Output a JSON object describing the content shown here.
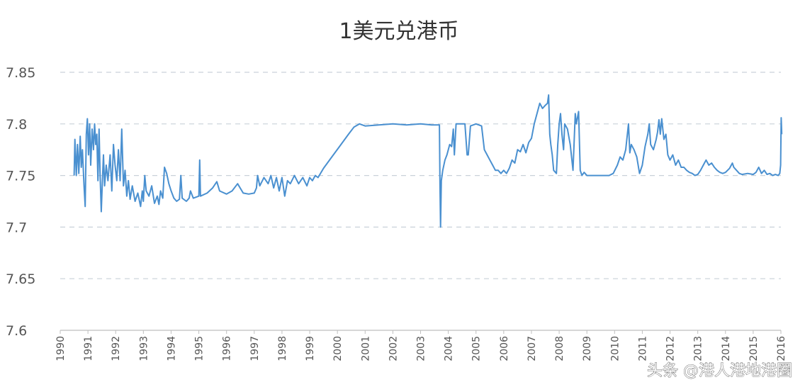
{
  "chart_data": {
    "type": "line",
    "title": "1美元兑港币",
    "xlabel": "",
    "ylabel": "",
    "ylim": [
      7.6,
      7.85
    ],
    "yticks": [
      "7.85",
      "7.8",
      "7.75",
      "7.7",
      "7.65",
      "7.6"
    ],
    "ytick_values": [
      7.85,
      7.8,
      7.75,
      7.7,
      7.65,
      7.6
    ],
    "xlim": [
      1990,
      2016
    ],
    "xticks": [
      "1990",
      "1991",
      "1992",
      "1993",
      "1994",
      "1995",
      "1996",
      "1997",
      "1998",
      "1999",
      "2000",
      "2001",
      "2002",
      "2003",
      "2004",
      "2005",
      "2006",
      "2007",
      "2008",
      "2009",
      "2010",
      "2011",
      "2012",
      "2013",
      "2014",
      "2015",
      "2016"
    ],
    "grid": true,
    "colors": {
      "series": "#4a90d0",
      "grid": "#c9d1d9",
      "text": "#555555"
    },
    "series": [
      {
        "values": [
          [
            1990.5,
            7.75
          ],
          [
            1990.53,
            7.785
          ],
          [
            1990.58,
            7.75
          ],
          [
            1990.62,
            7.78
          ],
          [
            1990.67,
            7.752
          ],
          [
            1990.72,
            7.788
          ],
          [
            1990.76,
            7.758
          ],
          [
            1990.8,
            7.775
          ],
          [
            1990.86,
            7.74
          ],
          [
            1990.9,
            7.72
          ],
          [
            1990.94,
            7.79
          ],
          [
            1990.98,
            7.805
          ],
          [
            1991.02,
            7.77
          ],
          [
            1991.06,
            7.8
          ],
          [
            1991.1,
            7.76
          ],
          [
            1991.15,
            7.795
          ],
          [
            1991.2,
            7.775
          ],
          [
            1991.24,
            7.8
          ],
          [
            1991.28,
            7.78
          ],
          [
            1991.32,
            7.79
          ],
          [
            1991.36,
            7.745
          ],
          [
            1991.4,
            7.795
          ],
          [
            1991.44,
            7.75
          ],
          [
            1991.48,
            7.715
          ],
          [
            1991.52,
            7.745
          ],
          [
            1991.56,
            7.77
          ],
          [
            1991.6,
            7.74
          ],
          [
            1991.66,
            7.76
          ],
          [
            1991.72,
            7.745
          ],
          [
            1991.8,
            7.77
          ],
          [
            1991.86,
            7.735
          ],
          [
            1991.92,
            7.78
          ],
          [
            1991.98,
            7.76
          ],
          [
            1992.04,
            7.745
          ],
          [
            1992.1,
            7.775
          ],
          [
            1992.16,
            7.745
          ],
          [
            1992.22,
            7.795
          ],
          [
            1992.28,
            7.74
          ],
          [
            1992.34,
            7.755
          ],
          [
            1992.4,
            7.73
          ],
          [
            1992.46,
            7.745
          ],
          [
            1992.52,
            7.727
          ],
          [
            1992.6,
            7.74
          ],
          [
            1992.7,
            7.725
          ],
          [
            1992.8,
            7.733
          ],
          [
            1992.9,
            7.72
          ],
          [
            1992.96,
            7.735
          ],
          [
            1993.0,
            7.725
          ],
          [
            1993.05,
            7.75
          ],
          [
            1993.1,
            7.735
          ],
          [
            1993.2,
            7.73
          ],
          [
            1993.3,
            7.74
          ],
          [
            1993.4,
            7.723
          ],
          [
            1993.5,
            7.73
          ],
          [
            1993.56,
            7.722
          ],
          [
            1993.62,
            7.735
          ],
          [
            1993.7,
            7.728
          ],
          [
            1993.76,
            7.758
          ],
          [
            1993.84,
            7.752
          ],
          [
            1993.92,
            7.742
          ],
          [
            1994.0,
            7.735
          ],
          [
            1994.1,
            7.728
          ],
          [
            1994.2,
            7.725
          ],
          [
            1994.3,
            7.727
          ],
          [
            1994.35,
            7.75
          ],
          [
            1994.4,
            7.728
          ],
          [
            1994.55,
            7.725
          ],
          [
            1994.65,
            7.728
          ],
          [
            1994.7,
            7.735
          ],
          [
            1994.8,
            7.728
          ],
          [
            1995.0,
            7.73
          ],
          [
            1995.03,
            7.765
          ],
          [
            1995.06,
            7.73
          ],
          [
            1995.3,
            7.733
          ],
          [
            1995.5,
            7.738
          ],
          [
            1995.65,
            7.744
          ],
          [
            1995.75,
            7.735
          ],
          [
            1996.0,
            7.732
          ],
          [
            1996.2,
            7.735
          ],
          [
            1996.4,
            7.742
          ],
          [
            1996.6,
            7.733
          ],
          [
            1996.8,
            7.732
          ],
          [
            1997.0,
            7.733
          ],
          [
            1997.08,
            7.738
          ],
          [
            1997.12,
            7.75
          ],
          [
            1997.2,
            7.74
          ],
          [
            1997.35,
            7.748
          ],
          [
            1997.5,
            7.742
          ],
          [
            1997.6,
            7.75
          ],
          [
            1997.7,
            7.738
          ],
          [
            1997.8,
            7.748
          ],
          [
            1997.9,
            7.735
          ],
          [
            1998.0,
            7.748
          ],
          [
            1998.1,
            7.73
          ],
          [
            1998.2,
            7.745
          ],
          [
            1998.3,
            7.742
          ],
          [
            1998.45,
            7.75
          ],
          [
            1998.6,
            7.742
          ],
          [
            1998.75,
            7.748
          ],
          [
            1998.9,
            7.74
          ],
          [
            1999.0,
            7.748
          ],
          [
            1999.1,
            7.745
          ],
          [
            1999.2,
            7.75
          ],
          [
            1999.3,
            7.748
          ],
          [
            1999.5,
            7.757
          ],
          [
            1999.8,
            7.768
          ],
          [
            2000.1,
            7.779
          ],
          [
            2000.4,
            7.79
          ],
          [
            2000.6,
            7.797
          ],
          [
            2000.8,
            7.8
          ],
          [
            2001.0,
            7.798
          ],
          [
            2001.5,
            7.799
          ],
          [
            2002.0,
            7.8
          ],
          [
            2002.5,
            7.799
          ],
          [
            2003.0,
            7.8
          ],
          [
            2003.4,
            7.799
          ],
          [
            2003.68,
            7.799
          ],
          [
            2003.7,
            7.74
          ],
          [
            2003.72,
            7.7
          ],
          [
            2003.75,
            7.745
          ],
          [
            2003.8,
            7.755
          ],
          [
            2003.88,
            7.765
          ],
          [
            2003.95,
            7.77
          ],
          [
            2004.05,
            7.78
          ],
          [
            2004.12,
            7.778
          ],
          [
            2004.18,
            7.795
          ],
          [
            2004.22,
            7.77
          ],
          [
            2004.28,
            7.8
          ],
          [
            2004.45,
            7.8
          ],
          [
            2004.6,
            7.8
          ],
          [
            2004.68,
            7.77
          ],
          [
            2004.72,
            7.77
          ],
          [
            2004.8,
            7.798
          ],
          [
            2005.0,
            7.8
          ],
          [
            2005.2,
            7.798
          ],
          [
            2005.3,
            7.775
          ],
          [
            2005.4,
            7.77
          ],
          [
            2005.5,
            7.765
          ],
          [
            2005.6,
            7.76
          ],
          [
            2005.7,
            7.755
          ],
          [
            2005.8,
            7.755
          ],
          [
            2005.9,
            7.752
          ],
          [
            2006.0,
            7.755
          ],
          [
            2006.1,
            7.752
          ],
          [
            2006.2,
            7.757
          ],
          [
            2006.3,
            7.765
          ],
          [
            2006.4,
            7.762
          ],
          [
            2006.5,
            7.775
          ],
          [
            2006.6,
            7.773
          ],
          [
            2006.7,
            7.78
          ],
          [
            2006.8,
            7.772
          ],
          [
            2006.9,
            7.782
          ],
          [
            2007.0,
            7.786
          ],
          [
            2007.1,
            7.8
          ],
          [
            2007.2,
            7.81
          ],
          [
            2007.3,
            7.82
          ],
          [
            2007.4,
            7.815
          ],
          [
            2007.5,
            7.818
          ],
          [
            2007.58,
            7.82
          ],
          [
            2007.62,
            7.828
          ],
          [
            2007.66,
            7.79
          ],
          [
            2007.7,
            7.78
          ],
          [
            2007.75,
            7.77
          ],
          [
            2007.8,
            7.755
          ],
          [
            2007.9,
            7.752
          ],
          [
            2007.95,
            7.78
          ],
          [
            2008.0,
            7.8
          ],
          [
            2008.05,
            7.81
          ],
          [
            2008.1,
            7.79
          ],
          [
            2008.16,
            7.775
          ],
          [
            2008.2,
            7.8
          ],
          [
            2008.3,
            7.795
          ],
          [
            2008.4,
            7.78
          ],
          [
            2008.5,
            7.755
          ],
          [
            2008.58,
            7.81
          ],
          [
            2008.62,
            7.8
          ],
          [
            2008.7,
            7.812
          ],
          [
            2008.76,
            7.755
          ],
          [
            2008.82,
            7.75
          ],
          [
            2008.9,
            7.753
          ],
          [
            2009.0,
            7.75
          ],
          [
            2009.2,
            7.75
          ],
          [
            2009.4,
            7.75
          ],
          [
            2009.6,
            7.75
          ],
          [
            2009.8,
            7.75
          ],
          [
            2009.95,
            7.752
          ],
          [
            2010.1,
            7.76
          ],
          [
            2010.2,
            7.768
          ],
          [
            2010.3,
            7.765
          ],
          [
            2010.4,
            7.775
          ],
          [
            2010.5,
            7.8
          ],
          [
            2010.55,
            7.772
          ],
          [
            2010.6,
            7.78
          ],
          [
            2010.7,
            7.775
          ],
          [
            2010.8,
            7.768
          ],
          [
            2010.9,
            7.752
          ],
          [
            2011.0,
            7.76
          ],
          [
            2011.1,
            7.778
          ],
          [
            2011.2,
            7.79
          ],
          [
            2011.25,
            7.8
          ],
          [
            2011.3,
            7.78
          ],
          [
            2011.4,
            7.775
          ],
          [
            2011.5,
            7.785
          ],
          [
            2011.55,
            7.792
          ],
          [
            2011.6,
            7.804
          ],
          [
            2011.65,
            7.79
          ],
          [
            2011.7,
            7.805
          ],
          [
            2011.78,
            7.785
          ],
          [
            2011.85,
            7.79
          ],
          [
            2011.92,
            7.77
          ],
          [
            2012.0,
            7.765
          ],
          [
            2012.1,
            7.77
          ],
          [
            2012.2,
            7.76
          ],
          [
            2012.3,
            7.765
          ],
          [
            2012.4,
            7.758
          ],
          [
            2012.5,
            7.758
          ],
          [
            2012.6,
            7.755
          ],
          [
            2012.7,
            7.753
          ],
          [
            2012.8,
            7.752
          ],
          [
            2012.9,
            7.75
          ],
          [
            2013.0,
            7.751
          ],
          [
            2013.1,
            7.755
          ],
          [
            2013.2,
            7.76
          ],
          [
            2013.3,
            7.765
          ],
          [
            2013.4,
            7.76
          ],
          [
            2013.5,
            7.762
          ],
          [
            2013.6,
            7.758
          ],
          [
            2013.7,
            7.755
          ],
          [
            2013.8,
            7.753
          ],
          [
            2013.9,
            7.752
          ],
          [
            2014.0,
            7.753
          ],
          [
            2014.15,
            7.757
          ],
          [
            2014.25,
            7.762
          ],
          [
            2014.3,
            7.758
          ],
          [
            2014.4,
            7.755
          ],
          [
            2014.5,
            7.752
          ],
          [
            2014.6,
            7.751
          ],
          [
            2014.8,
            7.752
          ],
          [
            2015.0,
            7.751
          ],
          [
            2015.1,
            7.753
          ],
          [
            2015.2,
            7.758
          ],
          [
            2015.3,
            7.752
          ],
          [
            2015.4,
            7.755
          ],
          [
            2015.5,
            7.751
          ],
          [
            2015.6,
            7.752
          ],
          [
            2015.7,
            7.75
          ],
          [
            2015.8,
            7.751
          ],
          [
            2015.9,
            7.75
          ],
          [
            2015.96,
            7.752
          ],
          [
            2015.99,
            7.76
          ],
          [
            2016.01,
            7.806
          ],
          [
            2016.03,
            7.79
          ]
        ]
      }
    ]
  },
  "watermark": {
    "text": "头条 @港人港地港圈"
  }
}
